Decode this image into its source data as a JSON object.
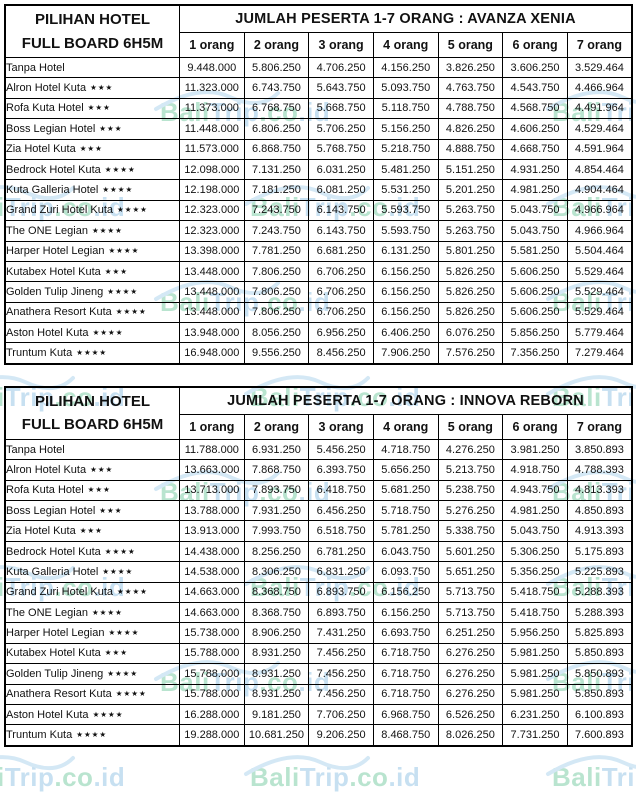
{
  "watermark": {
    "text": "BaliTrip.co.id",
    "part1": "Bali",
    "part2": "Trip",
    "part3": ".co",
    "part4": ".id",
    "green": "#a8ddc3",
    "blue": "#b9d8ee",
    "swoosh_blue": "#c9e2f3"
  },
  "tables": [
    {
      "left_header_line1": "PILIHAN HOTEL",
      "left_header_line2": "FULL BOARD 6H5M",
      "span_header": "JUMLAH PESERTA 1-7 ORANG : AVANZA XENIA",
      "col_headers": [
        "1 orang",
        "2 orang",
        "3 orang",
        "4 orang",
        "5 orang",
        "6 orang",
        "7 orang"
      ],
      "rows": [
        {
          "hotel": "Tanpa Hotel",
          "stars": "",
          "prices": [
            "9.448.000",
            "5.806.250",
            "4.706.250",
            "4.156.250",
            "3.826.250",
            "3.606.250",
            "3.529.464"
          ]
        },
        {
          "hotel": "Alron Hotel Kuta",
          "stars": "★★★",
          "prices": [
            "11.323.000",
            "6.743.750",
            "5.643.750",
            "5.093.750",
            "4.763.750",
            "4.543.750",
            "4.466.964"
          ]
        },
        {
          "hotel": "Rofa Kuta Hotel",
          "stars": "★★★",
          "prices": [
            "11.373.000",
            "6.768.750",
            "5.668.750",
            "5.118.750",
            "4.788.750",
            "4.568.750",
            "4.491.964"
          ]
        },
        {
          "hotel": "Boss Legian Hotel",
          "stars": "★★★",
          "prices": [
            "11.448.000",
            "6.806.250",
            "5.706.250",
            "5.156.250",
            "4.826.250",
            "4.606.250",
            "4.529.464"
          ]
        },
        {
          "hotel": "Zia Hotel Kuta",
          "stars": "★★★",
          "prices": [
            "11.573.000",
            "6.868.750",
            "5.768.750",
            "5.218.750",
            "4.888.750",
            "4.668.750",
            "4.591.964"
          ]
        },
        {
          "hotel": "Bedrock Hotel Kuta",
          "stars": "★★★★",
          "prices": [
            "12.098.000",
            "7.131.250",
            "6.031.250",
            "5.481.250",
            "5.151.250",
            "4.931.250",
            "4.854.464"
          ]
        },
        {
          "hotel": "Kuta Galleria Hotel",
          "stars": "★★★★",
          "prices": [
            "12.198.000",
            "7.181.250",
            "6.081.250",
            "5.531.250",
            "5.201.250",
            "4.981.250",
            "4.904.464"
          ]
        },
        {
          "hotel": "Grand Zuri Hotel Kuta",
          "stars": "★★★★",
          "prices": [
            "12.323.000",
            "7.243.750",
            "6.143.750",
            "5.593.750",
            "5.263.750",
            "5.043.750",
            "4.966.964"
          ]
        },
        {
          "hotel": "The ONE Legian",
          "stars": "★★★★",
          "prices": [
            "12.323.000",
            "7.243.750",
            "6.143.750",
            "5.593.750",
            "5.263.750",
            "5.043.750",
            "4.966.964"
          ]
        },
        {
          "hotel": "Harper Hotel Legian",
          "stars": "★★★★",
          "prices": [
            "13.398.000",
            "7.781.250",
            "6.681.250",
            "6.131.250",
            "5.801.250",
            "5.581.250",
            "5.504.464"
          ]
        },
        {
          "hotel": "Kutabex Hotel Kuta",
          "stars": "★★★",
          "prices": [
            "13.448.000",
            "7.806.250",
            "6.706.250",
            "6.156.250",
            "5.826.250",
            "5.606.250",
            "5.529.464"
          ]
        },
        {
          "hotel": "Golden Tulip Jineng",
          "stars": "★★★★",
          "prices": [
            "13.448.000",
            "7.806.250",
            "6.706.250",
            "6.156.250",
            "5.826.250",
            "5.606.250",
            "5.529.464"
          ]
        },
        {
          "hotel": "Anathera Resort Kuta",
          "stars": "★★★★",
          "prices": [
            "13.448.000",
            "7.806.250",
            "6.706.250",
            "6.156.250",
            "5.826.250",
            "5.606.250",
            "5.529.464"
          ]
        },
        {
          "hotel": "Aston Hotel Kuta",
          "stars": "★★★★",
          "prices": [
            "13.948.000",
            "8.056.250",
            "6.956.250",
            "6.406.250",
            "6.076.250",
            "5.856.250",
            "5.779.464"
          ]
        },
        {
          "hotel": "Truntum Kuta",
          "stars": "★★★★",
          "prices": [
            "16.948.000",
            "9.556.250",
            "8.456.250",
            "7.906.250",
            "7.576.250",
            "7.356.250",
            "7.279.464"
          ]
        }
      ]
    },
    {
      "left_header_line1": "PILIHAN HOTEL",
      "left_header_line2": "FULL BOARD 6H5M",
      "span_header": "JUMLAH PESERTA 1-7 ORANG : INNOVA REBORN",
      "col_headers": [
        "1 orang",
        "2 orang",
        "3 orang",
        "4 orang",
        "5 orang",
        "6 orang",
        "7 orang"
      ],
      "rows": [
        {
          "hotel": "Tanpa Hotel",
          "stars": "",
          "prices": [
            "11.788.000",
            "6.931.250",
            "5.456.250",
            "4.718.750",
            "4.276.250",
            "3.981.250",
            "3.850.893"
          ]
        },
        {
          "hotel": "Alron Hotel Kuta",
          "stars": "★★★",
          "prices": [
            "13.663.000",
            "7.868.750",
            "6.393.750",
            "5.656.250",
            "5.213.750",
            "4.918.750",
            "4.788.393"
          ]
        },
        {
          "hotel": "Rofa Kuta Hotel",
          "stars": "★★★",
          "prices": [
            "13.713.000",
            "7.893.750",
            "6.418.750",
            "5.681.250",
            "5.238.750",
            "4.943.750",
            "4.813.393"
          ]
        },
        {
          "hotel": "Boss Legian Hotel",
          "stars": "★★★",
          "prices": [
            "13.788.000",
            "7.931.250",
            "6.456.250",
            "5.718.750",
            "5.276.250",
            "4.981.250",
            "4.850.893"
          ]
        },
        {
          "hotel": "Zia Hotel Kuta",
          "stars": "★★★",
          "prices": [
            "13.913.000",
            "7.993.750",
            "6.518.750",
            "5.781.250",
            "5.338.750",
            "5.043.750",
            "4.913.393"
          ]
        },
        {
          "hotel": "Bedrock Hotel Kuta",
          "stars": "★★★★",
          "prices": [
            "14.438.000",
            "8.256.250",
            "6.781.250",
            "6.043.750",
            "5.601.250",
            "5.306.250",
            "5.175.893"
          ]
        },
        {
          "hotel": "Kuta Galleria Hotel",
          "stars": "★★★★",
          "prices": [
            "14.538.000",
            "8.306.250",
            "6.831.250",
            "6.093.750",
            "5.651.250",
            "5.356.250",
            "5.225.893"
          ]
        },
        {
          "hotel": "Grand Zuri Hotel Kuta",
          "stars": "★★★★",
          "prices": [
            "14.663.000",
            "8.368.750",
            "6.893.750",
            "6.156.250",
            "5.713.750",
            "5.418.750",
            "5.288.393"
          ]
        },
        {
          "hotel": "The ONE Legian",
          "stars": "★★★★",
          "prices": [
            "14.663.000",
            "8.368.750",
            "6.893.750",
            "6.156.250",
            "5.713.750",
            "5.418.750",
            "5.288.393"
          ]
        },
        {
          "hotel": "Harper Hotel Legian",
          "stars": "★★★★",
          "prices": [
            "15.738.000",
            "8.906.250",
            "7.431.250",
            "6.693.750",
            "6.251.250",
            "5.956.250",
            "5.825.893"
          ]
        },
        {
          "hotel": "Kutabex Hotel Kuta",
          "stars": "★★★",
          "prices": [
            "15.788.000",
            "8.931.250",
            "7.456.250",
            "6.718.750",
            "6.276.250",
            "5.981.250",
            "5.850.893"
          ]
        },
        {
          "hotel": "Golden Tulip Jineng",
          "stars": "★★★★",
          "prices": [
            "15.788.000",
            "8.931.250",
            "7.456.250",
            "6.718.750",
            "6.276.250",
            "5.981.250",
            "5.850.893"
          ]
        },
        {
          "hotel": "Anathera Resort Kuta",
          "stars": "★★★★",
          "prices": [
            "15.788.000",
            "8.931.250",
            "7.456.250",
            "6.718.750",
            "6.276.250",
            "5.981.250",
            "5.850.893"
          ]
        },
        {
          "hotel": "Aston Hotel Kuta",
          "stars": "★★★★",
          "prices": [
            "16.288.000",
            "9.181.250",
            "7.706.250",
            "6.968.750",
            "6.526.250",
            "6.231.250",
            "6.100.893"
          ]
        },
        {
          "hotel": "Truntum Kuta",
          "stars": "★★★★",
          "prices": [
            "19.288.000",
            "10.681.250",
            "9.206.250",
            "8.468.750",
            "8.026.250",
            "7.731.250",
            "7.600.893"
          ]
        }
      ]
    }
  ]
}
